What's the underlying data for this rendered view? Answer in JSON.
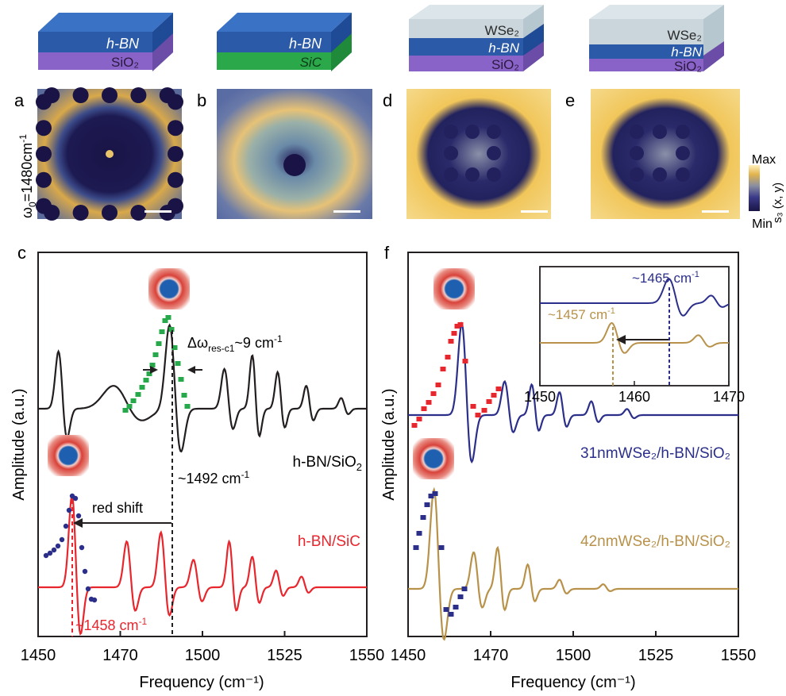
{
  "schematics": [
    {
      "id": "s1",
      "layers": [
        {
          "name": "",
          "color": "#2a5aa8"
        },
        {
          "name": "h-BN",
          "color": "#2a5aa8"
        },
        {
          "name": "SiO2",
          "color": "#8a63c8"
        }
      ],
      "labels": [
        "h-BN",
        "SiO₂"
      ]
    },
    {
      "id": "s2",
      "labels": [
        "h-BN",
        "SiC"
      ]
    },
    {
      "id": "s3",
      "labels": [
        "WSe₂",
        "h-BN",
        "SiO₂"
      ]
    },
    {
      "id": "s4",
      "labels": [
        "WSe₂",
        "h-BN",
        "SiO₂"
      ]
    }
  ],
  "panels": {
    "a": "a",
    "b": "b",
    "c": "c",
    "d": "d",
    "e": "e",
    "f": "f"
  },
  "omega_label": "ω",
  "omega_sub": "0",
  "omega_value": "=1480cm",
  "omega_sup": "-1",
  "colorbar": {
    "max": "Max",
    "min": "Min",
    "label": "s₃ (x, y)",
    "colors": [
      "#1a1446",
      "#3b3a8a",
      "#7a86a8",
      "#c9b07a",
      "#f2c14e",
      "#fff4c4"
    ]
  },
  "axes": {
    "left": {
      "xlabel": "Frequency (cm⁻¹)",
      "ylabel": "Amplitude (a.u.)",
      "xticks": [
        "1450",
        "1470",
        "1500",
        "1525",
        "1550"
      ]
    },
    "right": {
      "xlabel": "Frequency (cm⁻¹)",
      "ylabel": "Amplitude (a.u.)",
      "xticks": [
        "1450",
        "1470",
        "1500",
        "1525",
        "1550"
      ]
    }
  },
  "annotations": {
    "delta_prefix": "Δω",
    "delta_sub": "res-c1",
    "delta_value": "~9 cm",
    "delta_sup": "-1",
    "f1492": "~1492 cm",
    "f1492_sup": "-1",
    "redshift": "red shift",
    "f1458": "~1458 cm",
    "f1458_sup": "-1",
    "hbn_sio2": "h-BN/SiO",
    "hbn_sio2_sub": "2",
    "hbn_sic": "h-BN/SiC",
    "wse31": "31nmWSe₂/h-BN/SiO₂",
    "wse42": "42nmWSe₂/h-BN/SiO₂",
    "inset_1465": "~1465 cm",
    "inset_1465_sup": "-1",
    "inset_1457": "~1457 cm",
    "inset_1457_sup": "-1",
    "inset_xticks": [
      "1450",
      "1460",
      "1470"
    ]
  },
  "chart_data": [
    {
      "type": "line",
      "panel": "c",
      "series": [
        {
          "name": "h-BN/SiO2",
          "color": "#231f20"
        },
        {
          "name": "h-BN/SiC",
          "color": "#e8262d"
        }
      ],
      "markers": [
        "~1492 cm-1",
        "~1458 cm-1"
      ],
      "xlim": [
        1450,
        1550
      ]
    },
    {
      "type": "line",
      "panel": "f",
      "series": [
        {
          "name": "31nmWSe2/h-BN/SiO2",
          "color": "#2b2f8a"
        },
        {
          "name": "42nmWSe2/h-BN/SiO2",
          "color": "#b8924a"
        }
      ],
      "xlim": [
        1450,
        1550
      ]
    }
  ]
}
